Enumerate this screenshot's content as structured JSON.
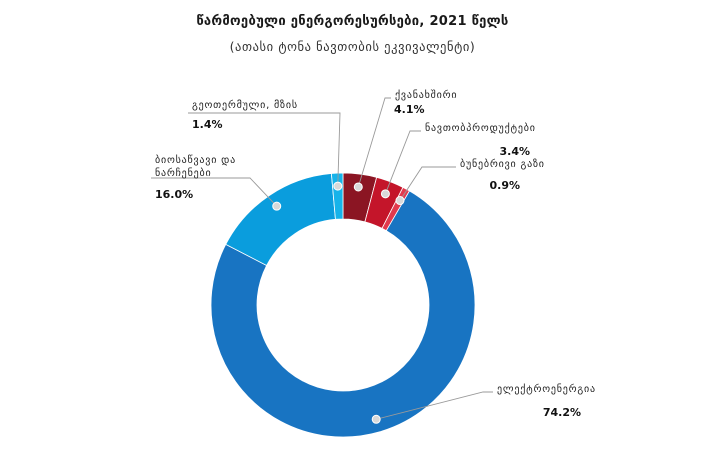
{
  "chart_data": {
    "type": "pie",
    "title": "წარმოებული ენერგორესურსები, 2021 წელს",
    "subtitle": "(ათასი ტონა ნავთობის ეკვივალენტი)",
    "slices": [
      {
        "name": "ქვანახშირი",
        "value": 4.1,
        "display": "4.1%",
        "color": "#8b1523"
      },
      {
        "name": "ნავთობპროდუქტები",
        "value": 3.4,
        "display": "3.4%",
        "color": "#c4152a"
      },
      {
        "name": "ბუნებრივი გაზი",
        "value": 0.9,
        "display": "0.9%",
        "color": "#e23a4e"
      },
      {
        "name": "ელექტროენერგია",
        "value": 74.2,
        "display": "74.2%",
        "color": "#1874c2"
      },
      {
        "name": "ბიოსაწვავი და ნარჩენები",
        "value": 16.0,
        "display": "16.0%",
        "color": "#0a9ddd",
        "label_lines": [
          "ბიოსაწვავი და",
          "ნარჩენები"
        ]
      },
      {
        "name": "გეოთერმული, მზის",
        "value": 1.4,
        "display": "1.4%",
        "color": "#16b3ea"
      }
    ]
  }
}
